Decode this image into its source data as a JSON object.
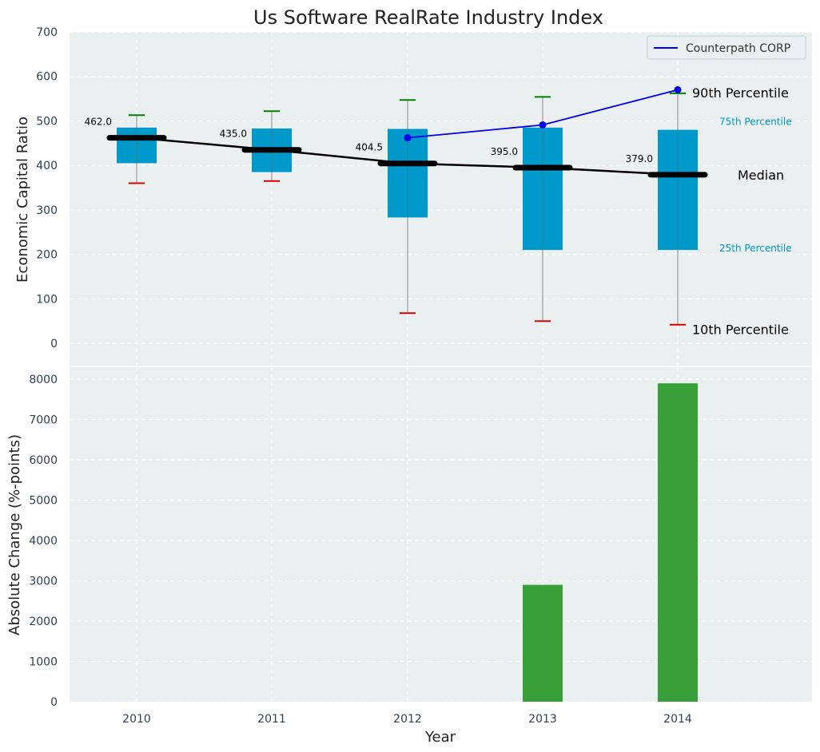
{
  "chart_data": {
    "title": "Us Software RealRate Industry Index",
    "xlabel": "Year",
    "categories": [
      "2010",
      "2011",
      "2012",
      "2013",
      "2014"
    ],
    "colors": {
      "box": "#0099cc",
      "median": "#000000",
      "company": "#0000ee",
      "whisker_high": "#008000",
      "whisker_low": "#dd0000",
      "bar": "#2e9a2e",
      "panel_bg": "#eaeff0",
      "percentile_label": "#0099cc"
    },
    "top": {
      "type": "box",
      "ylabel": "Economic Capital Ratio",
      "ylim": [
        -50,
        700
      ],
      "yticks": [
        0,
        100,
        200,
        300,
        400,
        500,
        600,
        700
      ],
      "grid": true,
      "boxes": [
        {
          "year": "2010",
          "p10": 360,
          "p25": 405,
          "median": 462.0,
          "p75": 485,
          "p90": 513,
          "median_label": "462.0"
        },
        {
          "year": "2011",
          "p10": 365,
          "p25": 385,
          "median": 435.0,
          "p75": 483,
          "p90": 522,
          "median_label": "435.0"
        },
        {
          "year": "2012",
          "p10": 68,
          "p25": 283,
          "median": 404.5,
          "p75": 482,
          "p90": 547,
          "median_label": "404.5"
        },
        {
          "year": "2013",
          "p10": 50,
          "p25": 210,
          "median": 395.0,
          "p75": 485,
          "p90": 554,
          "median_label": "395.0"
        },
        {
          "year": "2014",
          "p10": 42,
          "p25": 210,
          "median": 379.0,
          "p75": 480,
          "p90": 562,
          "median_label": "379.0"
        }
      ],
      "company_series": {
        "name": "Counterpath CORP",
        "x": [
          "2012",
          "2013",
          "2014"
        ],
        "values": [
          462,
          491,
          570
        ]
      },
      "legend": {
        "position": "top-right",
        "label": "Counterpath CORP"
      },
      "annotations": {
        "p90": "90th Percentile",
        "p75": "75th Percentile",
        "median": "Median",
        "p25": "25th Percentile",
        "p10": "10th Percentile"
      }
    },
    "bottom": {
      "type": "bar",
      "ylabel": "Absolute Change (%-points)",
      "ylim": [
        0,
        8300
      ],
      "yticks": [
        0,
        1000,
        2000,
        3000,
        4000,
        5000,
        6000,
        7000,
        8000
      ],
      "grid": true,
      "values": [
        0,
        0,
        0,
        2900,
        7900
      ]
    }
  }
}
